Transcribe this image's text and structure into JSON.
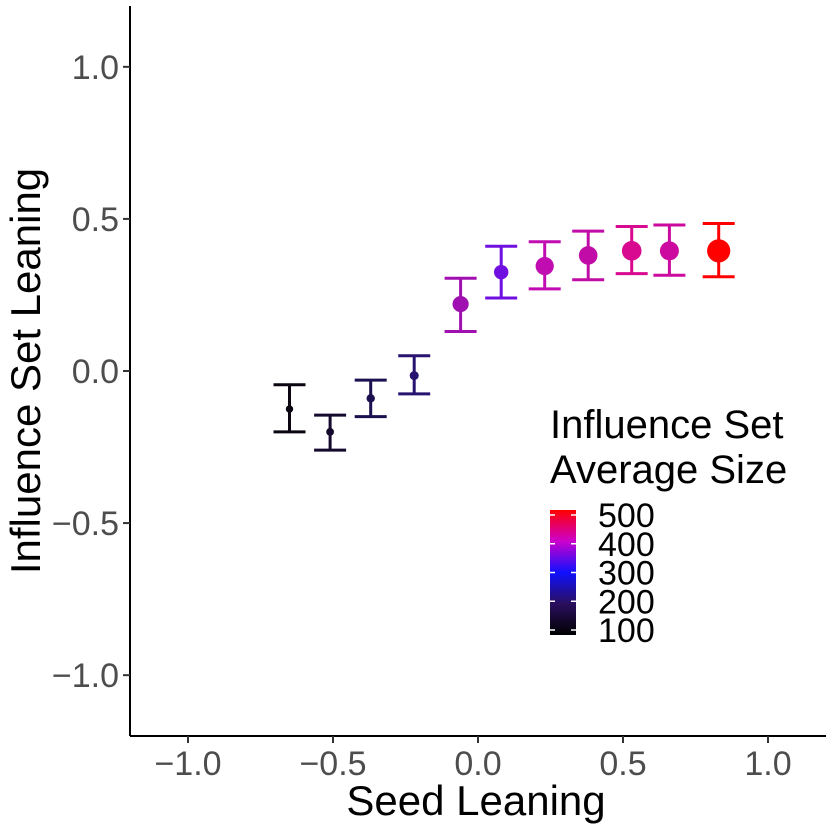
{
  "chart_data": {
    "type": "scatter",
    "title": "",
    "xlabel": "Seed Leaning",
    "ylabel": "Influence Set Leaning",
    "xlim": [
      -1.2,
      1.2
    ],
    "ylim": [
      -1.2,
      1.2
    ],
    "x_ticks": [
      -1.0,
      -0.5,
      0.0,
      0.5,
      1.0
    ],
    "x_tick_labels": [
      "−1.0",
      "−0.5",
      "0.0",
      "0.5",
      "1.0"
    ],
    "y_ticks": [
      -1.0,
      -0.5,
      0.0,
      0.5,
      1.0
    ],
    "y_tick_labels": [
      "−1.0",
      "−0.5",
      "0.0",
      "0.5",
      "1.0"
    ],
    "grid": false,
    "series": [
      {
        "name": "Influence Set Leaning",
        "points": [
          {
            "x": -0.65,
            "y": -0.125,
            "ymin": -0.2,
            "ymax": -0.045,
            "size": 110,
            "color": "#0a0510"
          },
          {
            "x": -0.51,
            "y": -0.2,
            "ymin": -0.26,
            "ymax": -0.145,
            "size": 120,
            "color": "#150a2e"
          },
          {
            "x": -0.37,
            "y": -0.09,
            "ymin": -0.15,
            "ymax": -0.03,
            "size": 135,
            "color": "#1c1050"
          },
          {
            "x": -0.22,
            "y": -0.015,
            "ymin": -0.075,
            "ymax": 0.05,
            "size": 150,
            "color": "#281470"
          },
          {
            "x": -0.06,
            "y": 0.22,
            "ymin": 0.13,
            "ymax": 0.305,
            "size": 330,
            "color": "#a010b0"
          },
          {
            "x": 0.08,
            "y": 0.325,
            "ymin": 0.24,
            "ymax": 0.41,
            "size": 285,
            "color": "#7010e0"
          },
          {
            "x": 0.23,
            "y": 0.345,
            "ymin": 0.27,
            "ymax": 0.425,
            "size": 380,
            "color": "#c00cb0"
          },
          {
            "x": 0.38,
            "y": 0.38,
            "ymin": 0.3,
            "ymax": 0.46,
            "size": 390,
            "color": "#c20ca8"
          },
          {
            "x": 0.53,
            "y": 0.395,
            "ymin": 0.32,
            "ymax": 0.475,
            "size": 415,
            "color": "#d80a90"
          },
          {
            "x": 0.66,
            "y": 0.395,
            "ymin": 0.315,
            "ymax": 0.48,
            "size": 400,
            "color": "#cc0aa0"
          },
          {
            "x": 0.83,
            "y": 0.395,
            "ymin": 0.31,
            "ymax": 0.485,
            "size": 505,
            "color": "#ff0000"
          }
        ]
      }
    ],
    "legend": {
      "title_line1": "Influence Set",
      "title_line2": "Average Size",
      "position": "bottom-right",
      "range": [
        100,
        500
      ],
      "breaks": [
        100,
        200,
        300,
        400,
        500
      ],
      "labels": [
        "100",
        "200",
        "300",
        "400",
        "500"
      ],
      "gradient_colors": [
        "#000000",
        "#2a0f5e",
        "#1010ff",
        "#cc00cc",
        "#ff0000"
      ]
    }
  }
}
